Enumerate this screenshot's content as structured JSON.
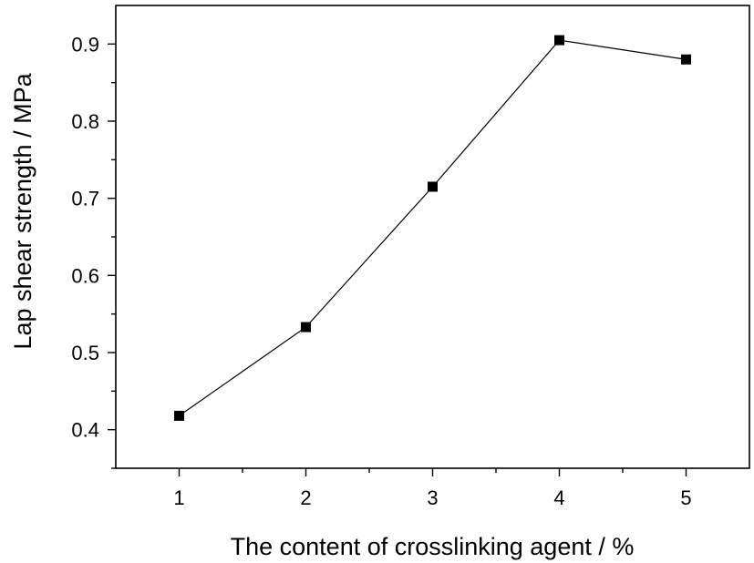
{
  "chart_data": {
    "type": "line",
    "title": "",
    "xlabel": "The content of crosslinking agent  / %",
    "ylabel": "Lap shear strength  / MPa",
    "xlim": [
      0.5,
      5.5
    ],
    "ylim": [
      0.35,
      0.95
    ],
    "xticks": [
      1,
      2,
      3,
      4,
      5
    ],
    "xtick_labels": [
      "1",
      "2",
      "3",
      "4",
      "5"
    ],
    "yticks": [
      0.4,
      0.5,
      0.6,
      0.7,
      0.8,
      0.9
    ],
    "ytick_labels": [
      "0.4",
      "0.5",
      "0.6",
      "0.7",
      "0.8",
      "0.9"
    ],
    "grid": false,
    "legend": "none",
    "marker": "square",
    "color": "#000000",
    "series": [
      {
        "x": [
          1,
          2,
          3,
          4,
          5
        ],
        "y": [
          0.418,
          0.533,
          0.715,
          0.905,
          0.88
        ]
      }
    ]
  }
}
